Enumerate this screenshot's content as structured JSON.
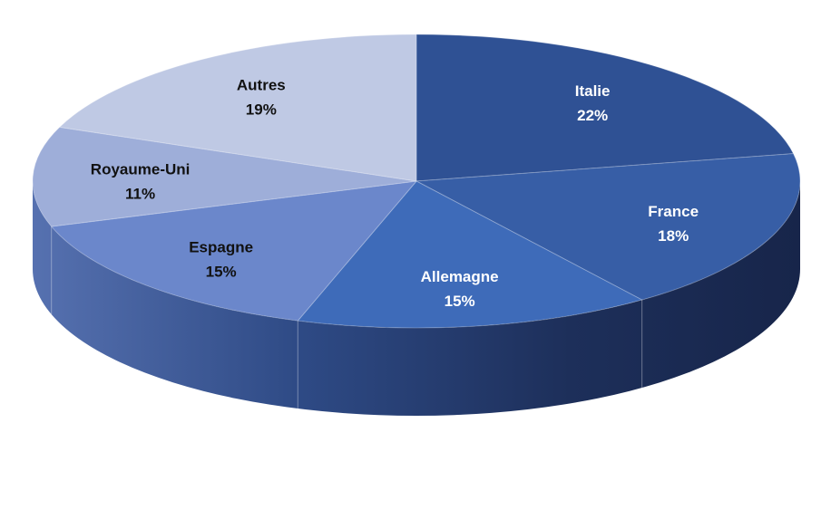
{
  "chart_data": {
    "type": "pie",
    "style": "3d",
    "categories": [
      "Italie",
      "France",
      "Allemagne",
      "Espagne",
      "Royaume-Uni",
      "Autres"
    ],
    "values": [
      22,
      18,
      15,
      15,
      11,
      19
    ],
    "labels": [
      "22%",
      "18%",
      "15%",
      "15%",
      "11%",
      "19%"
    ],
    "colors": [
      "#2f5194",
      "#375ea6",
      "#3e6bb9",
      "#6b87cb",
      "#9eaed9",
      "#bfc9e4"
    ],
    "title": ""
  }
}
